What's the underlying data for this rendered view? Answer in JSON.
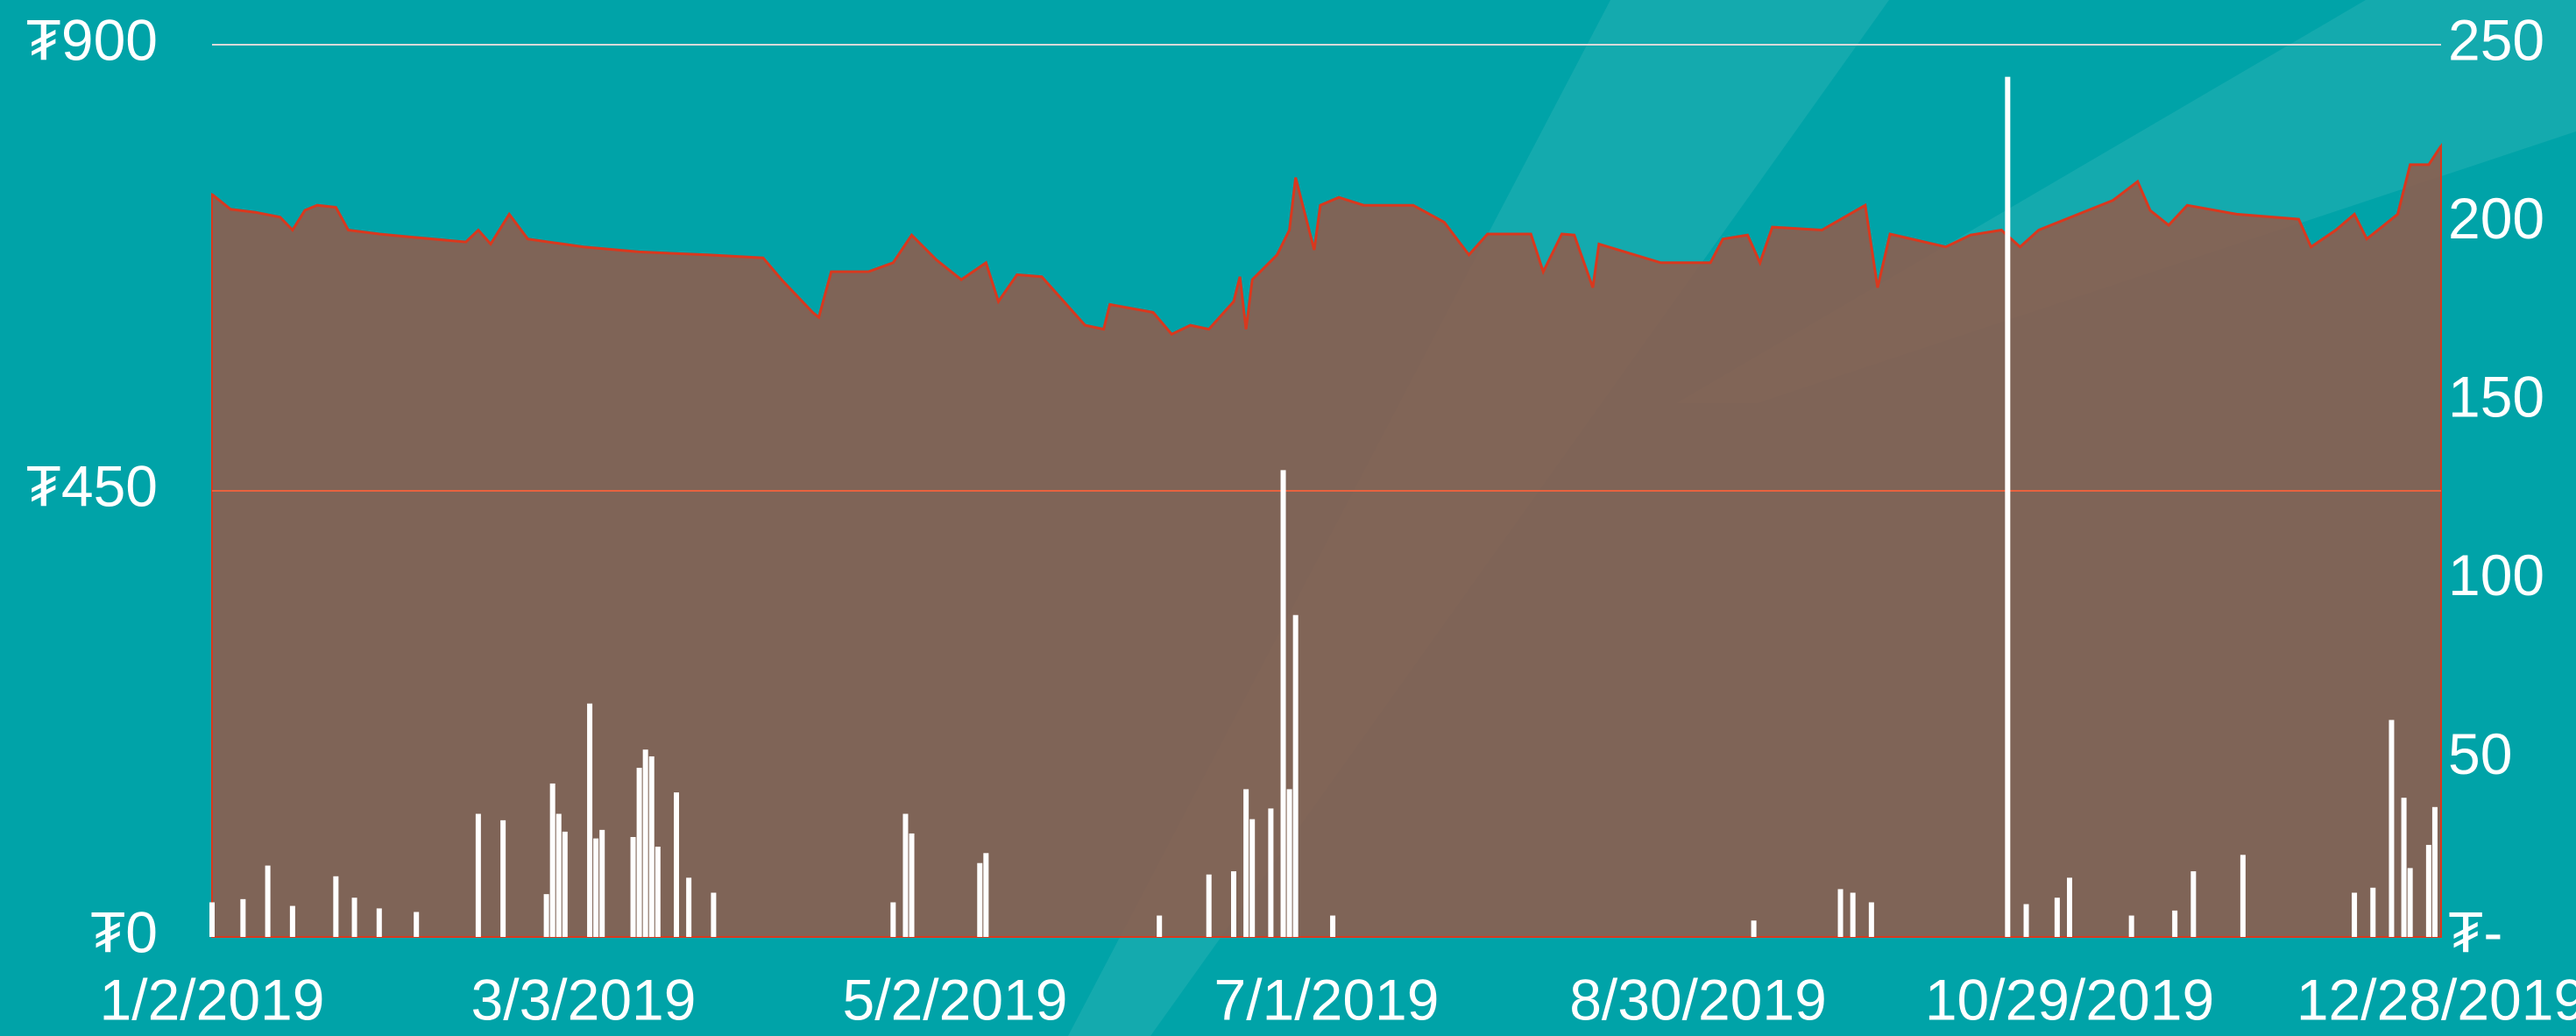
{
  "chart_data": {
    "type": "area",
    "xlim": [
      "1/2/2019",
      "12/28/2019"
    ],
    "xticks": [
      "1/2/2019",
      "3/3/2019",
      "5/2/2019",
      "7/1/2019",
      "8/30/2019",
      "10/29/2019",
      "12/28/2019"
    ],
    "ylim": [
      0,
      900
    ],
    "yticks": [
      {
        "value": 0,
        "label": "₮0"
      },
      {
        "value": 450,
        "label": "₮450"
      },
      {
        "value": 900,
        "label": "₮900"
      }
    ],
    "y2lim": [
      0,
      250
    ],
    "y2ticks": [
      {
        "value": 0,
        "label": "₮-"
      },
      50,
      100,
      150,
      200,
      250
    ],
    "grid": true,
    "series": [
      {
        "type": "area",
        "color": "#d9381e",
        "fill": "#8d5d4e",
        "x": [
          "1/2/2019",
          "1/5/2019",
          "1/9/2019",
          "1/13/2019",
          "1/15/2019",
          "1/17/2019",
          "1/19/2019",
          "1/22/2019",
          "1/24/2019",
          "1/29/2019",
          "2/3/2019",
          "2/12/2019",
          "2/14/2019",
          "2/16/2019",
          "2/19/2019",
          "2/22/2019",
          "3/3/2019",
          "3/12/2019",
          "3/23/2019",
          "4/1/2019",
          "4/4/2019",
          "4/9/2019",
          "4/10/2019",
          "4/12/2019",
          "4/18/2019",
          "4/22/2019",
          "4/25/2019",
          "4/29/2019",
          "5/3/2019",
          "5/7/2019",
          "5/9/2019",
          "5/12/2019",
          "5/16/2019",
          "5/20/2019",
          "5/23/2019",
          "5/26/2019",
          "5/27/2019",
          "6/3/2019",
          "6/6/2019",
          "6/9/2019",
          "6/12/2019",
          "6/16/2019",
          "6/17/2019",
          "6/18/2019",
          "6/19/2019",
          "6/23/2019",
          "6/25/2019",
          "6/26/2019",
          "6/29/2019",
          "6/30/2019",
          "7/3/2019",
          "7/7/2019",
          "7/15/2019",
          "7/20/2019",
          "7/24/2019",
          "7/27/2019",
          "8/3/2019",
          "8/5/2019",
          "8/8/2019",
          "8/10/2019",
          "8/13/2019",
          "8/14/2019",
          "8/24/2019",
          "9/1/2019",
          "9/3/2019",
          "9/7/2019",
          "9/9/2019",
          "9/11/2019",
          "9/19/2019",
          "9/26/2019",
          "9/28/2019",
          "9/30/2019",
          "10/9/2019",
          "10/13/2019",
          "10/18/2019",
          "10/21/2019",
          "10/24/2019",
          "11/1/2019",
          "11/5/2019",
          "11/9/2019",
          "11/11/2019",
          "11/14/2019",
          "11/17/2019",
          "11/25/2019",
          "12/5/2019",
          "12/7/2019",
          "12/11/2019",
          "12/14/2019",
          "12/16/2019",
          "12/21/2019",
          "12/23/2019",
          "12/26/2019",
          "12/28/2019"
        ],
        "values": [
          749,
          734,
          731,
          726,
          713,
          733,
          738,
          736,
          713,
          709,
          706,
          701,
          713,
          699,
          729,
          704,
          696,
          691,
          688,
          685,
          663,
          630,
          625,
          671,
          671,
          680,
          708,
          683,
          663,
          680,
          641,
          668,
          666,
          638,
          617,
          613,
          638,
          630,
          608,
          617,
          613,
          641,
          666,
          613,
          663,
          688,
          713,
          766,
          693,
          738,
          746,
          738,
          738,
          721,
          688,
          709,
          709,
          671,
          709,
          708,
          655,
          699,
          680,
          680,
          704,
          708,
          680,
          716,
          713,
          738,
          655,
          709,
          696,
          708,
          713,
          696,
          713,
          733,
          743,
          762,
          733,
          718,
          738,
          729,
          724,
          696,
          713,
          729,
          704,
          729,
          779,
          779,
          798
        ]
      },
      {
        "type": "bar",
        "axis": "y2",
        "color": "#ffffff",
        "x": [
          "1/2/2019",
          "1/7/2019",
          "1/11/2019",
          "1/15/2019",
          "1/22/2019",
          "1/25/2019",
          "1/29/2019",
          "2/4/2019",
          "2/14/2019",
          "2/18/2019",
          "2/25/2019",
          "2/26/2019",
          "2/27/2019",
          "2/28/2019",
          "3/4/2019",
          "3/5/2019",
          "3/6/2019",
          "3/11/2019",
          "3/12/2019",
          "3/13/2019",
          "3/14/2019",
          "3/15/2019",
          "3/18/2019",
          "3/20/2019",
          "3/24/2019",
          "4/22/2019",
          "4/24/2019",
          "4/25/2019",
          "5/6/2019",
          "5/7/2019",
          "6/4/2019",
          "6/12/2019",
          "6/16/2019",
          "6/18/2019",
          "6/19/2019",
          "6/22/2019",
          "6/24/2019",
          "6/25/2019",
          "6/26/2019",
          "7/2/2019",
          "9/8/2019",
          "9/22/2019",
          "9/24/2019",
          "9/27/2019",
          "10/19/2019",
          "10/22/2019",
          "10/27/2019",
          "10/29/2019",
          "11/8/2019",
          "11/15/2019",
          "11/18/2019",
          "11/26/2019",
          "12/14/2019",
          "12/17/2019",
          "12/20/2019",
          "12/22/2019",
          "12/23/2019",
          "12/26/2019",
          "12/27/2019"
        ],
        "values": [
          9.7,
          10.6,
          20,
          8.7,
          17,
          11,
          8,
          7,
          34.5,
          32.7,
          12,
          43,
          34.5,
          29.5,
          65.4,
          27.6,
          30,
          28,
          47.4,
          52.5,
          50.6,
          25.3,
          40.5,
          16.6,
          12.4,
          9.7,
          34.5,
          29,
          20.7,
          23.5,
          6,
          17.5,
          18.4,
          41.4,
          33,
          36,
          130.8,
          41.4,
          90.2,
          6,
          4.6,
          13.4,
          12.4,
          9.7,
          241,
          9.2,
          11,
          16.6,
          6,
          7.4,
          18.4,
          23,
          12.4,
          13.8,
          60.8,
          39,
          19.3,
          25.8,
          36.4
        ]
      }
    ]
  }
}
